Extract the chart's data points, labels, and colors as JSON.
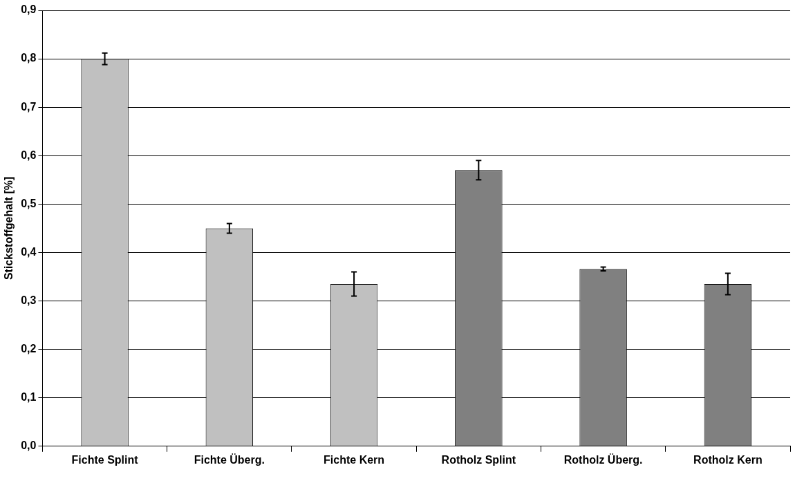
{
  "chart_data": {
    "type": "bar",
    "ylabel": "Stickstoffgehalt [%]",
    "categories": [
      "Fichte Splint",
      "Fichte Überg.",
      "Fichte Kern",
      "Rotholz Splint",
      "Rotholz Überg.",
      "Rotholz Kern"
    ],
    "values": [
      0.8,
      0.45,
      0.335,
      0.57,
      0.366,
      0.335
    ],
    "errors": [
      0.012,
      0.01,
      0.025,
      0.02,
      0.004,
      0.022
    ],
    "colors": [
      "#c0c0c0",
      "#c0c0c0",
      "#c0c0c0",
      "#808080",
      "#808080",
      "#808080"
    ],
    "ylim": [
      0,
      0.9
    ],
    "yticks": [
      {
        "value": 0,
        "label": "0,0"
      },
      {
        "value": 0.1,
        "label": "0,1"
      },
      {
        "value": 0.2,
        "label": "0,2"
      },
      {
        "value": 0.3,
        "label": "0,3"
      },
      {
        "value": 0.4,
        "label": "0,4"
      },
      {
        "value": 0.5,
        "label": "0,5"
      },
      {
        "value": 0.6,
        "label": "0,6"
      },
      {
        "value": 0.7,
        "label": "0,7"
      },
      {
        "value": 0.8,
        "label": "0,8"
      },
      {
        "value": 0.9,
        "label": "0,9"
      }
    ],
    "grid": "y",
    "legend": false
  }
}
